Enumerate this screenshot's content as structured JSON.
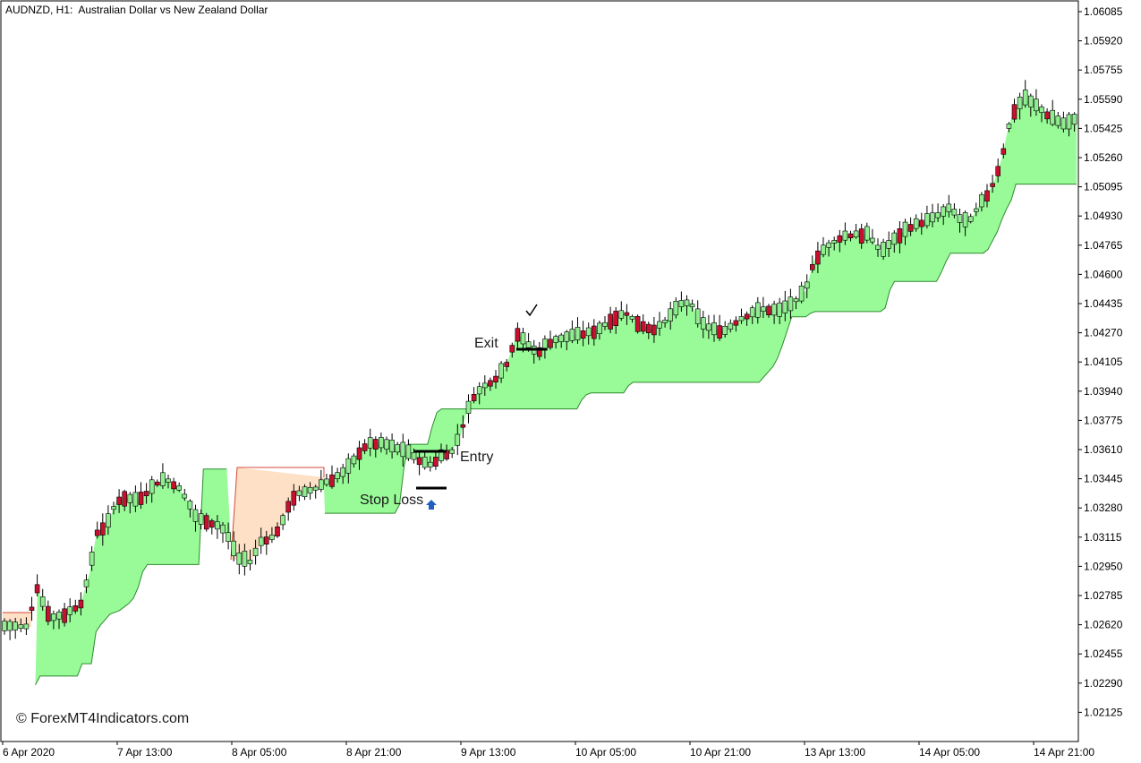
{
  "window": {
    "symbol_title": "AUDNZD, H1:  Australian Dollar vs New Zealand Dollar",
    "watermark": "© ForexMT4Indicators.com"
  },
  "colors": {
    "bull_body": "#90ee90",
    "bear_body": "#c8102e",
    "wick": "#000000",
    "uptrend_fill": "#98fb98",
    "uptrend_line": "#2e8b2e",
    "downtrend_fill": "#fde0c5",
    "downtrend_line": "#d44a3a",
    "arrow": "#1e5fbf"
  },
  "annotations": {
    "exit": "Exit",
    "entry": "Entry",
    "stop_loss": "Stop Loss"
  },
  "chart_data": {
    "type": "candlestick",
    "title": "AUDNZD, H1:  Australian Dollar vs New Zealand Dollar",
    "ylim": [
      1.0204,
      1.0613
    ],
    "y_ticks": [
      "1.06085",
      "1.05920",
      "1.05755",
      "1.05590",
      "1.05425",
      "1.05260",
      "1.05095",
      "1.04930",
      "1.04765",
      "1.04600",
      "1.04435",
      "1.04270",
      "1.04105",
      "1.03940",
      "1.03775",
      "1.03610",
      "1.03445",
      "1.03280",
      "1.03115",
      "1.02950",
      "1.02785",
      "1.02620",
      "1.02455",
      "1.02290",
      "1.02125"
    ],
    "x_ticks": [
      "6 Apr 2020",
      "7 Apr 13:00",
      "8 Apr 05:00",
      "8 Apr 21:00",
      "9 Apr 13:00",
      "10 Apr 05:00",
      "10 Apr 21:00",
      "13 Apr 13:00",
      "14 Apr 05:00",
      "14 Apr 21:00"
    ],
    "grid": false,
    "series": [
      {
        "role": "trend band",
        "values": [
          1.0268,
          1.0268,
          1.0268,
          1.0268,
          1.0268,
          1.0268,
          1.0235,
          1.0228,
          1.0233,
          1.0233,
          1.0233,
          1.0233,
          1.0233,
          1.0233,
          1.0233,
          1.0233,
          1.0233,
          1.024,
          1.024,
          1.024,
          1.0258,
          1.0262,
          1.0265,
          1.0268,
          1.0269,
          1.027,
          1.0272,
          1.0274,
          1.0277,
          1.0283,
          1.0292,
          1.0296,
          1.0296,
          1.0296,
          1.0296,
          1.0296,
          1.0296,
          1.0296,
          1.0296,
          1.0296,
          1.0296,
          1.0296,
          1.0296,
          1.035,
          1.035,
          1.035,
          1.035,
          1.035,
          1.035,
          1.035,
          1.035,
          1.035,
          1.035,
          1.035,
          1.035,
          1.035,
          1.035,
          1.035,
          1.035,
          1.035,
          1.03,
          1.0305,
          1.0308,
          1.0312,
          1.0318,
          1.0322,
          1.0325,
          1.0325,
          1.0325,
          1.0325,
          1.0325,
          1.0325,
          1.0325,
          1.0325,
          1.0325,
          1.0325,
          1.0325,
          1.0325,
          1.0325,
          1.0325,
          1.0325,
          1.0325,
          1.0325,
          1.0325,
          1.0325,
          1.033,
          1.0352,
          1.0364,
          1.0364,
          1.0364,
          1.0364,
          1.0364,
          1.0374,
          1.0382,
          1.0384,
          1.0384,
          1.0384,
          1.0384,
          1.0384,
          1.0384,
          1.0384,
          1.0384,
          1.0384,
          1.0384,
          1.0384,
          1.0384,
          1.0384,
          1.0384,
          1.0384,
          1.0384,
          1.0384,
          1.0384,
          1.0384,
          1.0384,
          1.0384,
          1.0384,
          1.0384,
          1.0384,
          1.0384,
          1.0384,
          1.0384,
          1.0384,
          1.0384,
          1.0384,
          1.0389,
          1.0392,
          1.0393,
          1.0393,
          1.0393,
          1.0393,
          1.0393,
          1.0393,
          1.0393,
          1.0393,
          1.0397,
          1.0399,
          1.0399,
          1.0399,
          1.0399,
          1.0399,
          1.0399,
          1.0399,
          1.0399,
          1.0399,
          1.0399,
          1.0399,
          1.0399,
          1.0399,
          1.0399,
          1.0399,
          1.0399,
          1.0399,
          1.0399,
          1.0399,
          1.0399,
          1.0399,
          1.0399,
          1.0399,
          1.0399,
          1.0399,
          1.0399,
          1.0399,
          1.0399,
          1.0402,
          1.0405,
          1.0408,
          1.0413,
          1.042,
          1.0428,
          1.0436,
          1.0436,
          1.0436,
          1.0436,
          1.0438,
          1.0439,
          1.0439,
          1.0439,
          1.0439,
          1.0439,
          1.0439,
          1.0439,
          1.0439,
          1.0439,
          1.0439,
          1.0439,
          1.0439,
          1.0439,
          1.0439,
          1.0439,
          1.0441,
          1.0451,
          1.0456,
          1.0456,
          1.0456,
          1.0456,
          1.0456,
          1.0456,
          1.0456,
          1.0456,
          1.0456,
          1.0456,
          1.0461,
          1.0467,
          1.0472,
          1.0472,
          1.0472,
          1.0472,
          1.0472,
          1.0472,
          1.0472,
          1.0472,
          1.0474,
          1.0479,
          1.0484,
          1.0491,
          1.0497,
          1.0502,
          1.0511,
          1.0511,
          1.0511,
          1.0511,
          1.0511,
          1.0511,
          1.0511,
          1.0511,
          1.0511,
          1.0511,
          1.0511,
          1.0511,
          1.0511,
          1.0511
        ],
        "trend": "up"
      }
    ]
  }
}
